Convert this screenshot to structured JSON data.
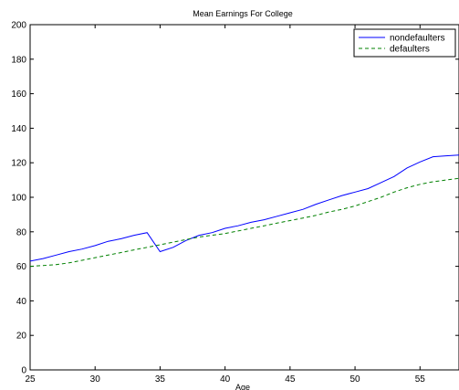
{
  "chart_data": {
    "type": "line",
    "title": "Mean  Earnings For College",
    "xlabel": "Age",
    "ylabel": "",
    "xlim": [
      25,
      58
    ],
    "ylim": [
      0,
      200
    ],
    "xticks": [
      25,
      30,
      35,
      40,
      45,
      50,
      55
    ],
    "yticks": [
      0,
      20,
      40,
      60,
      80,
      100,
      120,
      140,
      160,
      180,
      200
    ],
    "grid": false,
    "legend_position": "top-right",
    "series": [
      {
        "name": "nondefaulters",
        "color": "#0000ff",
        "style": "solid",
        "x": [
          25,
          26,
          27,
          28,
          29,
          30,
          31,
          32,
          33,
          34,
          35,
          36,
          37,
          38,
          39,
          40,
          41,
          42,
          43,
          44,
          45,
          46,
          47,
          48,
          49,
          50,
          51,
          52,
          53,
          54,
          55,
          56,
          57,
          58
        ],
        "y": [
          63,
          64.5,
          66.5,
          68.5,
          70,
          72,
          74.5,
          76,
          78,
          79.5,
          68.5,
          71,
          75,
          78,
          79.5,
          82,
          83.5,
          85.5,
          87,
          89,
          91,
          93,
          96,
          98.5,
          101,
          103,
          105,
          108.5,
          112,
          117,
          120.5,
          123.5,
          124,
          124.5
        ]
      },
      {
        "name": "defaulters",
        "color": "#008000",
        "style": "dashed",
        "x": [
          25,
          26,
          27,
          28,
          29,
          30,
          31,
          32,
          33,
          34,
          35,
          36,
          37,
          38,
          39,
          40,
          41,
          42,
          43,
          44,
          45,
          46,
          47,
          48,
          49,
          50,
          51,
          52,
          53,
          54,
          55,
          56,
          57,
          58
        ],
        "y": [
          60,
          60.5,
          61,
          62,
          63.5,
          65,
          66.5,
          68,
          69.5,
          71,
          72.5,
          74,
          75.5,
          77,
          78,
          79,
          80.5,
          82,
          83.5,
          85,
          86.5,
          88,
          89.5,
          91.5,
          93,
          95,
          97.5,
          100,
          103,
          105.5,
          107.5,
          109,
          110,
          111
        ]
      }
    ]
  }
}
